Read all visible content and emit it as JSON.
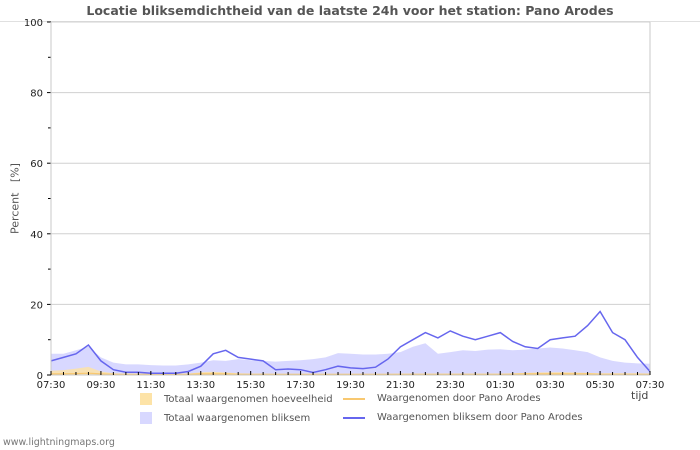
{
  "title": "Locatie bliksemdichtheid van de laatste 24h voor het station: Pano Arodes",
  "y_axis_label": "Percent   [%]",
  "x_axis_label": "tijd",
  "footer": "www.lightningmaps.org",
  "legend": [
    {
      "label": "Totaal waargenomen hoeveelheid",
      "kind": "area",
      "color": "#fde3a7"
    },
    {
      "label": "Waargenomen door Pano Arodes",
      "kind": "line",
      "color": "#f8c870"
    },
    {
      "label": "Totaal waargenomen bliksem",
      "kind": "area",
      "color": "#d8d8ff"
    },
    {
      "label": "Waargenomen bliksem door Pano Arodes",
      "kind": "line",
      "color": "#6666ee"
    }
  ],
  "chart_data": {
    "type": "line",
    "title": "Locatie bliksemdichtheid van de laatste 24h voor het station: Pano Arodes",
    "xlabel": "tijd",
    "ylabel": "Percent [%]",
    "ylim": [
      0,
      100
    ],
    "yticks": [
      0,
      20,
      40,
      60,
      80,
      100
    ],
    "grid": true,
    "legend_position": "bottom",
    "categories": [
      "07:30",
      "08:00",
      "08:30",
      "09:00",
      "09:30",
      "10:00",
      "10:30",
      "11:00",
      "11:30",
      "12:00",
      "12:30",
      "13:00",
      "13:30",
      "14:00",
      "14:30",
      "15:00",
      "15:30",
      "16:00",
      "16:30",
      "17:00",
      "17:30",
      "18:00",
      "18:30",
      "19:00",
      "19:30",
      "20:00",
      "20:30",
      "21:00",
      "21:30",
      "22:00",
      "22:30",
      "23:00",
      "23:30",
      "00:00",
      "00:30",
      "01:00",
      "01:30",
      "02:00",
      "02:30",
      "03:00",
      "03:30",
      "04:00",
      "04:30",
      "05:00",
      "05:30",
      "06:00",
      "06:30",
      "07:00",
      "07:30"
    ],
    "xtick_labels": [
      "07:30",
      "09:30",
      "11:30",
      "13:30",
      "15:30",
      "17:30",
      "19:30",
      "21:30",
      "23:30",
      "01:30",
      "03:30",
      "05:30",
      "07:30"
    ],
    "series": [
      {
        "name": "Totaal waargenomen bliksem",
        "type": "area",
        "color": "#d8d8ff",
        "values": [
          6,
          6,
          7,
          8,
          5,
          3.5,
          3,
          3,
          2.8,
          2.7,
          2.7,
          3,
          3.5,
          4.2,
          4,
          4.5,
          4.2,
          4,
          3.8,
          4,
          4.2,
          4.5,
          5,
          6.2,
          6,
          5.8,
          5.8,
          6,
          6.5,
          8,
          9,
          6,
          6.5,
          7,
          6.8,
          7.2,
          7.3,
          7,
          7.2,
          7.5,
          7.8,
          7.5,
          7,
          6.5,
          5,
          4,
          3.5,
          3.3,
          3.2
        ]
      },
      {
        "name": "Totaal waargenomen hoeveelheid",
        "type": "area",
        "color": "#fde3a7",
        "values": [
          1.2,
          1.4,
          1.8,
          2.3,
          1,
          0.5,
          0.4,
          0.3,
          0.3,
          0.3,
          0.3,
          0.4,
          0.8,
          0.9,
          0.7,
          0.5,
          0.4,
          0.4,
          0.3,
          0.3,
          0.3,
          0.3,
          0.3,
          0.3,
          0.3,
          0.3,
          0.3,
          0.3,
          0.4,
          0.4,
          0.4,
          0.4,
          0.4,
          0.4,
          0.4,
          0.4,
          0.4,
          0.5,
          0.6,
          0.7,
          0.8,
          0.8,
          0.7,
          0.6,
          0.5,
          0.5,
          0.5,
          0.5,
          0.4
        ]
      },
      {
        "name": "Waargenomen door Pano Arodes",
        "type": "line",
        "color": "#f8c870",
        "values": [
          0.3,
          0.3,
          0.4,
          0.5,
          0.3,
          0.2,
          0.2,
          0.2,
          0.2,
          0.2,
          0.2,
          0.2,
          0.3,
          0.3,
          0.3,
          0.2,
          0.2,
          0.2,
          0.2,
          0.2,
          0.2,
          0.2,
          0.2,
          0.2,
          0.2,
          0.2,
          0.2,
          0.2,
          0.2,
          0.2,
          0.2,
          0.2,
          0.2,
          0.2,
          0.2,
          0.2,
          0.2,
          0.2,
          0.3,
          0.3,
          0.3,
          0.3,
          0.3,
          0.3,
          0.2,
          0.2,
          0.2,
          0.2,
          0.2
        ]
      },
      {
        "name": "Waargenomen bliksem door Pano Arodes",
        "type": "line",
        "color": "#6666ee",
        "values": [
          4,
          5,
          6,
          8.5,
          4,
          1.5,
          0.8,
          0.8,
          0.5,
          0.5,
          0.5,
          1,
          2.5,
          6,
          7,
          5,
          4.5,
          4,
          1.5,
          1.7,
          1.5,
          0.7,
          1.5,
          2.5,
          2,
          1.8,
          2.2,
          4.5,
          8,
          10,
          12,
          10.5,
          12.5,
          11,
          10,
          11,
          12,
          9.5,
          8,
          7.5,
          10,
          10.5,
          11,
          14,
          18,
          12,
          10,
          5,
          1
        ]
      }
    ]
  }
}
